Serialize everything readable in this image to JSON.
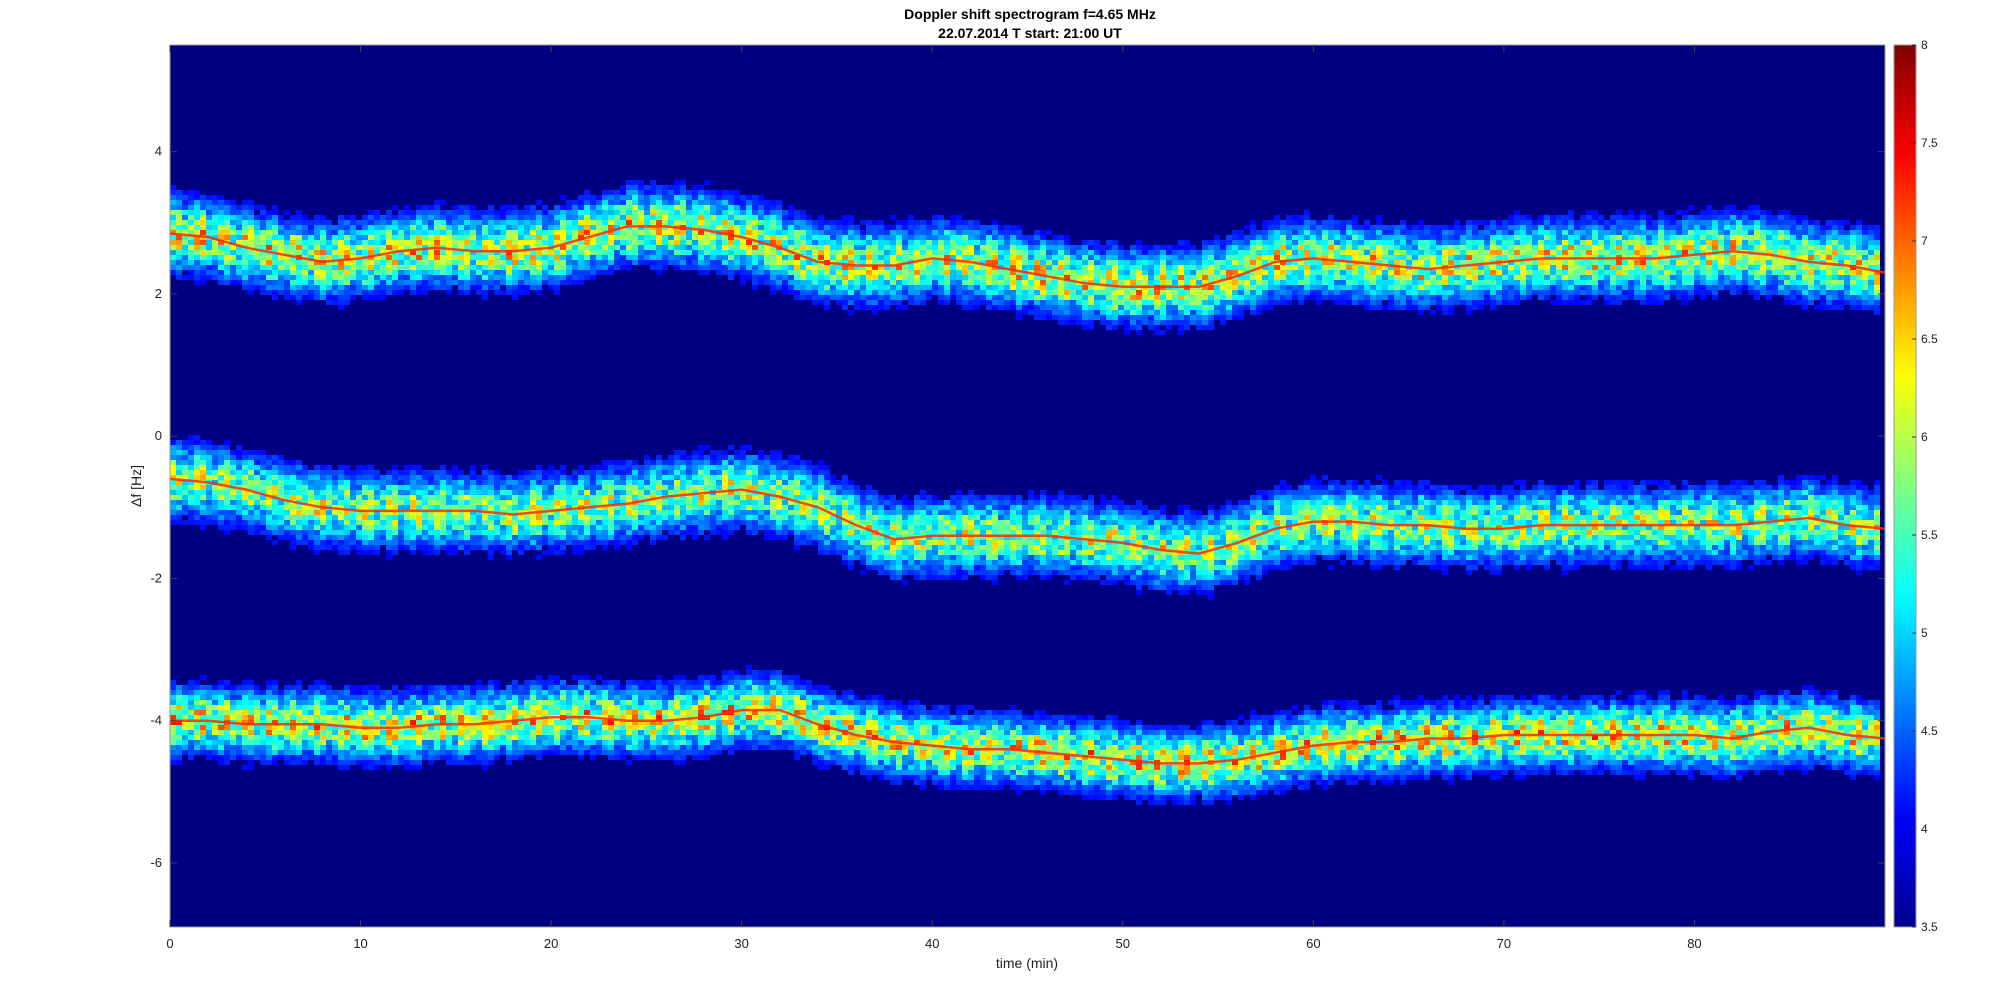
{
  "chart_data": {
    "type": "heatmap",
    "title": "Doppler shift spectrogram f=4.65 MHz",
    "subtitle": "22.07.2014   T start: 21:00 UT",
    "xlabel": "time (min)",
    "ylabel": "Δf [Hz]",
    "xlim": [
      0,
      90
    ],
    "ylim": [
      -6.9,
      5.5
    ],
    "x_ticks": [
      "0",
      "10",
      "20",
      "30",
      "40",
      "50",
      "60",
      "70",
      "80"
    ],
    "y_ticks": [
      "4",
      "2",
      "0",
      "-2",
      "-4",
      "-6"
    ],
    "colormap": "jet",
    "colorbar": {
      "range": [
        3.5,
        8
      ],
      "ticks": [
        "3.5",
        "4",
        "4.5",
        "5",
        "5.5",
        "6",
        "6.5",
        "7",
        "7.5",
        "8"
      ],
      "placement": "right"
    },
    "background_value": 3.5,
    "time_min": [
      0,
      2,
      4,
      6,
      8,
      10,
      12,
      14,
      16,
      18,
      20,
      22,
      24,
      26,
      28,
      30,
      32,
      34,
      36,
      38,
      40,
      42,
      44,
      46,
      48,
      50,
      52,
      54,
      56,
      58,
      60,
      62,
      64,
      66,
      68,
      70,
      72,
      74,
      76,
      78,
      80,
      82,
      84,
      86,
      88,
      90
    ],
    "series": [
      {
        "name": "upper",
        "peak_doppler_hz": [
          2.85,
          2.8,
          2.65,
          2.55,
          2.45,
          2.5,
          2.6,
          2.65,
          2.6,
          2.6,
          2.65,
          2.8,
          2.95,
          2.95,
          2.9,
          2.8,
          2.65,
          2.45,
          2.4,
          2.4,
          2.5,
          2.45,
          2.35,
          2.25,
          2.15,
          2.1,
          2.1,
          2.1,
          2.25,
          2.45,
          2.5,
          2.45,
          2.4,
          2.35,
          2.4,
          2.45,
          2.5,
          2.5,
          2.5,
          2.5,
          2.55,
          2.6,
          2.55,
          2.45,
          2.4,
          2.3
        ]
      },
      {
        "name": "middle",
        "peak_doppler_hz": [
          -0.6,
          -0.65,
          -0.75,
          -0.9,
          -1.0,
          -1.05,
          -1.05,
          -1.05,
          -1.05,
          -1.1,
          -1.05,
          -1.0,
          -0.95,
          -0.85,
          -0.8,
          -0.75,
          -0.85,
          -1.0,
          -1.25,
          -1.45,
          -1.4,
          -1.4,
          -1.4,
          -1.4,
          -1.45,
          -1.5,
          -1.6,
          -1.65,
          -1.5,
          -1.3,
          -1.2,
          -1.2,
          -1.25,
          -1.25,
          -1.3,
          -1.3,
          -1.25,
          -1.25,
          -1.25,
          -1.25,
          -1.25,
          -1.25,
          -1.2,
          -1.15,
          -1.25,
          -1.3
        ]
      },
      {
        "name": "lower",
        "peak_doppler_hz": [
          -4.0,
          -4.0,
          -4.05,
          -4.05,
          -4.05,
          -4.1,
          -4.1,
          -4.05,
          -4.05,
          -4.0,
          -3.95,
          -3.95,
          -4.0,
          -4.0,
          -3.95,
          -3.85,
          -3.85,
          -4.05,
          -4.2,
          -4.3,
          -4.35,
          -4.4,
          -4.4,
          -4.45,
          -4.5,
          -4.55,
          -4.6,
          -4.6,
          -4.55,
          -4.45,
          -4.35,
          -4.3,
          -4.3,
          -4.25,
          -4.25,
          -4.2,
          -4.2,
          -4.2,
          -4.2,
          -4.2,
          -4.2,
          -4.25,
          -4.15,
          -4.1,
          -4.2,
          -4.25
        ]
      }
    ]
  }
}
